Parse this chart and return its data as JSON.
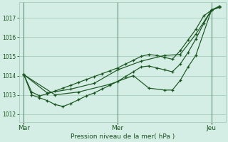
{
  "bg_color": "#d4ede5",
  "grid_color": "#a8ccbc",
  "line_color": "#1a5520",
  "marker_color": "#1a5520",
  "ylabel_ticks": [
    1012,
    1013,
    1014,
    1015,
    1016,
    1017
  ],
  "xlabel": "Pression niveau de la mer( hPa )",
  "xlabel_color": "#1a5020",
  "xtick_labels": [
    "Mar",
    "Mer",
    "Jeu"
  ],
  "xtick_positions": [
    0.0,
    1.0,
    2.0
  ],
  "ylim": [
    1011.6,
    1017.8
  ],
  "xlim": [
    -0.05,
    2.15
  ],
  "vlines": [
    0.0,
    1.0,
    2.0
  ],
  "series": [
    {
      "comment": "line1 - steady rise with small wiggles, many markers",
      "x": [
        0.0,
        0.083,
        0.167,
        0.25,
        0.333,
        0.417,
        0.5,
        0.583,
        0.667,
        0.75,
        0.833,
        0.917,
        1.0,
        1.083,
        1.167,
        1.25,
        1.333,
        1.417,
        1.5,
        1.583,
        1.667,
        1.75,
        1.833,
        1.917,
        2.0,
        2.083
      ],
      "y": [
        1014.05,
        1013.15,
        1012.95,
        1013.05,
        1013.2,
        1013.35,
        1013.5,
        1013.65,
        1013.8,
        1013.95,
        1014.1,
        1014.25,
        1014.4,
        1014.6,
        1014.8,
        1015.0,
        1015.1,
        1015.05,
        1014.95,
        1014.85,
        1015.3,
        1015.85,
        1016.4,
        1017.1,
        1017.4,
        1017.55
      ]
    },
    {
      "comment": "line2 - dips lower then rises, many markers",
      "x": [
        0.0,
        0.083,
        0.167,
        0.25,
        0.333,
        0.417,
        0.5,
        0.583,
        0.667,
        0.75,
        0.833,
        0.917,
        1.0,
        1.083,
        1.167,
        1.25,
        1.333,
        1.417,
        1.5,
        1.583,
        1.667,
        1.75,
        1.833,
        1.917,
        2.0,
        2.083
      ],
      "y": [
        1014.05,
        1013.0,
        1012.85,
        1012.7,
        1012.5,
        1012.4,
        1012.55,
        1012.75,
        1012.95,
        1013.1,
        1013.3,
        1013.5,
        1013.7,
        1013.95,
        1014.2,
        1014.45,
        1014.5,
        1014.4,
        1014.3,
        1014.2,
        1014.6,
        1015.2,
        1015.9,
        1016.7,
        1017.4,
        1017.55
      ]
    },
    {
      "comment": "line3 - rises steadily, fewer markers",
      "x": [
        0.0,
        0.25,
        0.5,
        0.75,
        1.0,
        1.25,
        1.5,
        1.667,
        1.833,
        2.0,
        2.083
      ],
      "y": [
        1014.05,
        1013.1,
        1013.3,
        1013.6,
        1014.3,
        1014.75,
        1015.05,
        1015.1,
        1016.15,
        1017.4,
        1017.6
      ]
    },
    {
      "comment": "line4 - dips mid then rises, fewer markers",
      "x": [
        0.0,
        0.333,
        0.583,
        0.917,
        1.167,
        1.333,
        1.5,
        1.583,
        1.667,
        1.75,
        1.833,
        2.0,
        2.083
      ],
      "y": [
        1014.05,
        1013.0,
        1013.15,
        1013.55,
        1014.0,
        1013.35,
        1013.25,
        1013.25,
        1013.75,
        1014.45,
        1015.05,
        1017.4,
        1017.6
      ]
    }
  ]
}
